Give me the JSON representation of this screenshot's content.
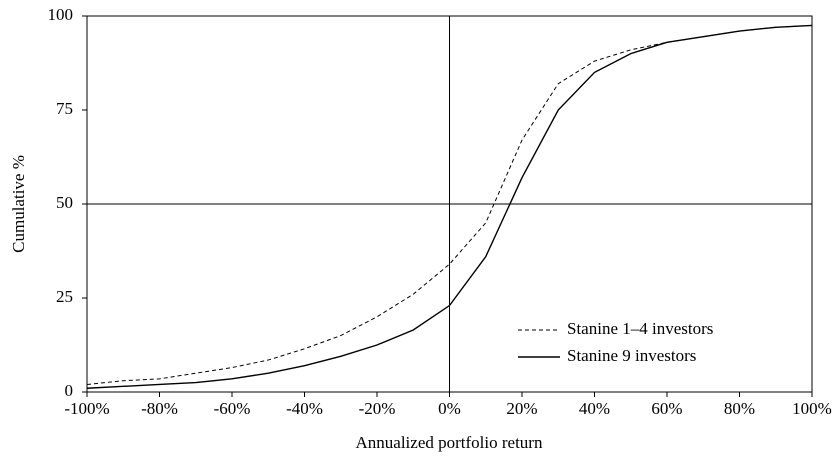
{
  "chart_data": {
    "type": "line",
    "x_label": "Annualized portfolio return",
    "y_label": "Cumulative %",
    "x": [
      -100,
      -90,
      -80,
      -70,
      -60,
      -50,
      -40,
      -30,
      -20,
      -10,
      0,
      10,
      20,
      30,
      40,
      50,
      60,
      70,
      80,
      90,
      100
    ],
    "series": [
      {
        "name": "Stanine 1–4 investors",
        "color": "#000000",
        "dash": true,
        "values": [
          2,
          3,
          3.5,
          5,
          6.5,
          8.5,
          11.5,
          15,
          20,
          26,
          34,
          45,
          67,
          82,
          88,
          91,
          93,
          94.5,
          96,
          97,
          97.5
        ]
      },
      {
        "name": "Stanine 9 investors",
        "color": "#000000",
        "dash": false,
        "values": [
          1,
          1.5,
          2,
          2.5,
          3.5,
          5,
          7,
          9.5,
          12.5,
          16.5,
          23,
          36,
          57,
          75,
          85,
          90,
          93,
          94.5,
          96,
          97,
          97.5
        ]
      }
    ],
    "xlim": [
      -100,
      100
    ],
    "xticks": [
      {
        "value": -100,
        "label": "-100%"
      },
      {
        "value": -80,
        "label": "-80%"
      },
      {
        "value": -60,
        "label": "-60%"
      },
      {
        "value": -40,
        "label": "-40%"
      },
      {
        "value": -20,
        "label": "-20%"
      },
      {
        "value": 0,
        "label": "0%"
      },
      {
        "value": 20,
        "label": "20%"
      },
      {
        "value": 40,
        "label": "40%"
      },
      {
        "value": 60,
        "label": "60%"
      },
      {
        "value": 80,
        "label": "80%"
      },
      {
        "value": 100,
        "label": "100%"
      }
    ],
    "ylim": [
      0,
      100
    ],
    "yticks": [
      0,
      25,
      50,
      75,
      100
    ],
    "vlines": [
      0
    ],
    "hlines": [
      50
    ],
    "legend": "lower-right"
  }
}
